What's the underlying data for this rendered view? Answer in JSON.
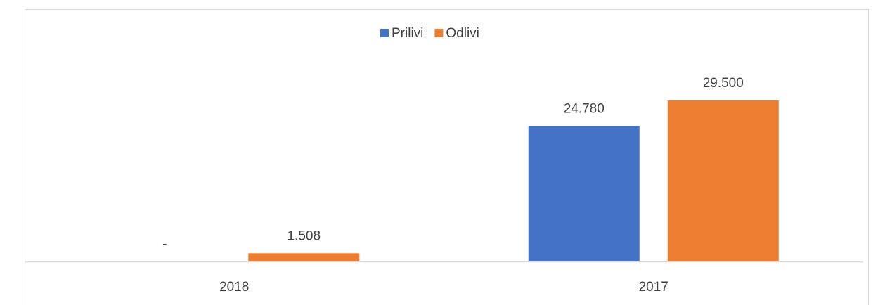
{
  "chart_data": {
    "type": "bar",
    "categories": [
      "2018",
      "2017"
    ],
    "series": [
      {
        "name": "Prilivi",
        "color": "#4472c4",
        "values": [
          0,
          24780
        ],
        "value_labels": [
          "-",
          "24.780"
        ]
      },
      {
        "name": "Odlivi",
        "color": "#ed7d31",
        "values": [
          1508,
          29500
        ],
        "value_labels": [
          "1.508",
          "29.500"
        ]
      }
    ],
    "legend": "top"
  }
}
